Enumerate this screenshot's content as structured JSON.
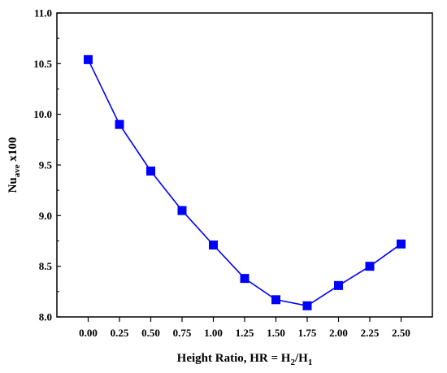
{
  "chart_data": {
    "type": "line",
    "x": [
      0.0,
      0.25,
      0.5,
      0.75,
      1.0,
      1.25,
      1.5,
      1.75,
      2.0,
      2.25,
      2.5
    ],
    "series": [
      {
        "values": [
          10.54,
          9.9,
          9.44,
          9.05,
          8.71,
          8.38,
          8.17,
          8.11,
          8.31,
          8.5,
          8.72
        ],
        "color": "#0000FF",
        "marker": "square"
      }
    ],
    "xticks": [
      "0.00",
      "0.25",
      "0.50",
      "0.75",
      "1.00",
      "1.25",
      "1.50",
      "1.75",
      "2.00",
      "2.25",
      "2.50"
    ],
    "yticks": [
      "8.0",
      "8.5",
      "9.0",
      "9.5",
      "10.0",
      "10.5",
      "11.0"
    ],
    "xlim": [
      -0.25,
      2.75
    ],
    "ylim": [
      8.0,
      11.0
    ],
    "xlabel": {
      "prefix": "Height Ratio, HR = H",
      "sub1": "2",
      "mid": "/H",
      "sub2": "1"
    },
    "ylabel": {
      "main": "Nu",
      "sub": "ave",
      "suffix": " x100"
    },
    "grid": false,
    "legend": "none"
  }
}
